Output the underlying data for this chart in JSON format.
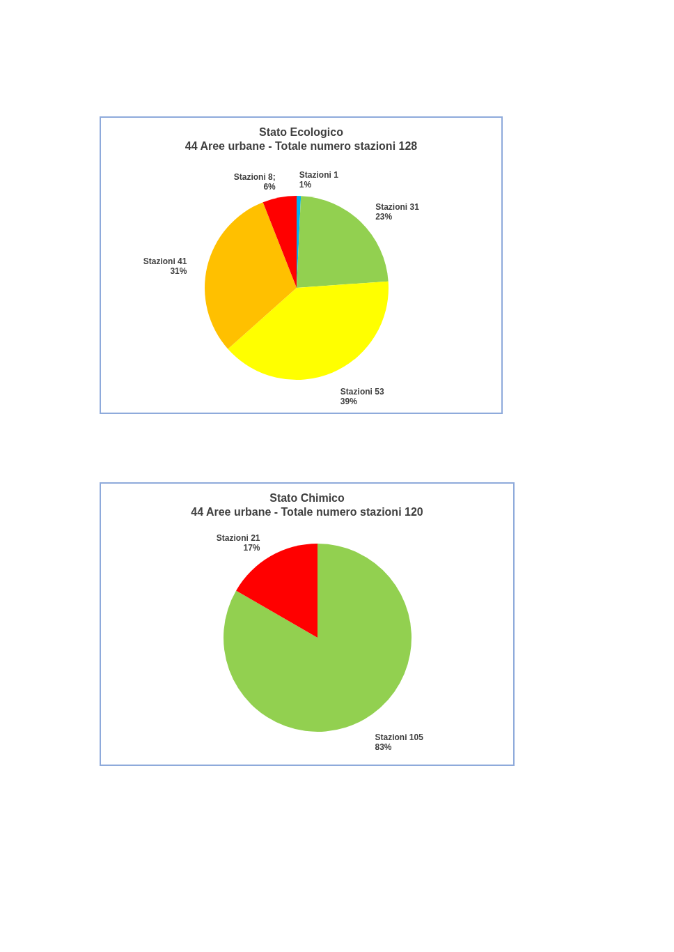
{
  "chart_data": [
    {
      "type": "pie",
      "title": "Stato Ecologico",
      "subtitle": "44 Aree urbane - Totale numero stazioni 128",
      "categories": [
        null,
        null,
        null,
        null,
        null
      ],
      "values": [
        1,
        31,
        53,
        41,
        8
      ],
      "colors": [
        "#00b0f0",
        "#92d050",
        "#ffff00",
        "#ffc000",
        "#ff0000"
      ],
      "value_labels": [
        "Stazioni 1\n1%",
        "Stazioni 31\n23%",
        "Stazioni 53\n39%",
        "Stazioni 41\n31%",
        "Stazioni 8;\n6%"
      ]
    },
    {
      "type": "pie",
      "title": "Stato Chimico",
      "subtitle": "44 Aree urbane - Totale numero stazioni 120",
      "categories": [
        null,
        null
      ],
      "values": [
        105,
        21
      ],
      "colors": [
        "#92d050",
        "#ff0000"
      ],
      "value_labels": [
        "Stazioni 105\n83%",
        "Stazioni 21\n17%"
      ]
    }
  ]
}
